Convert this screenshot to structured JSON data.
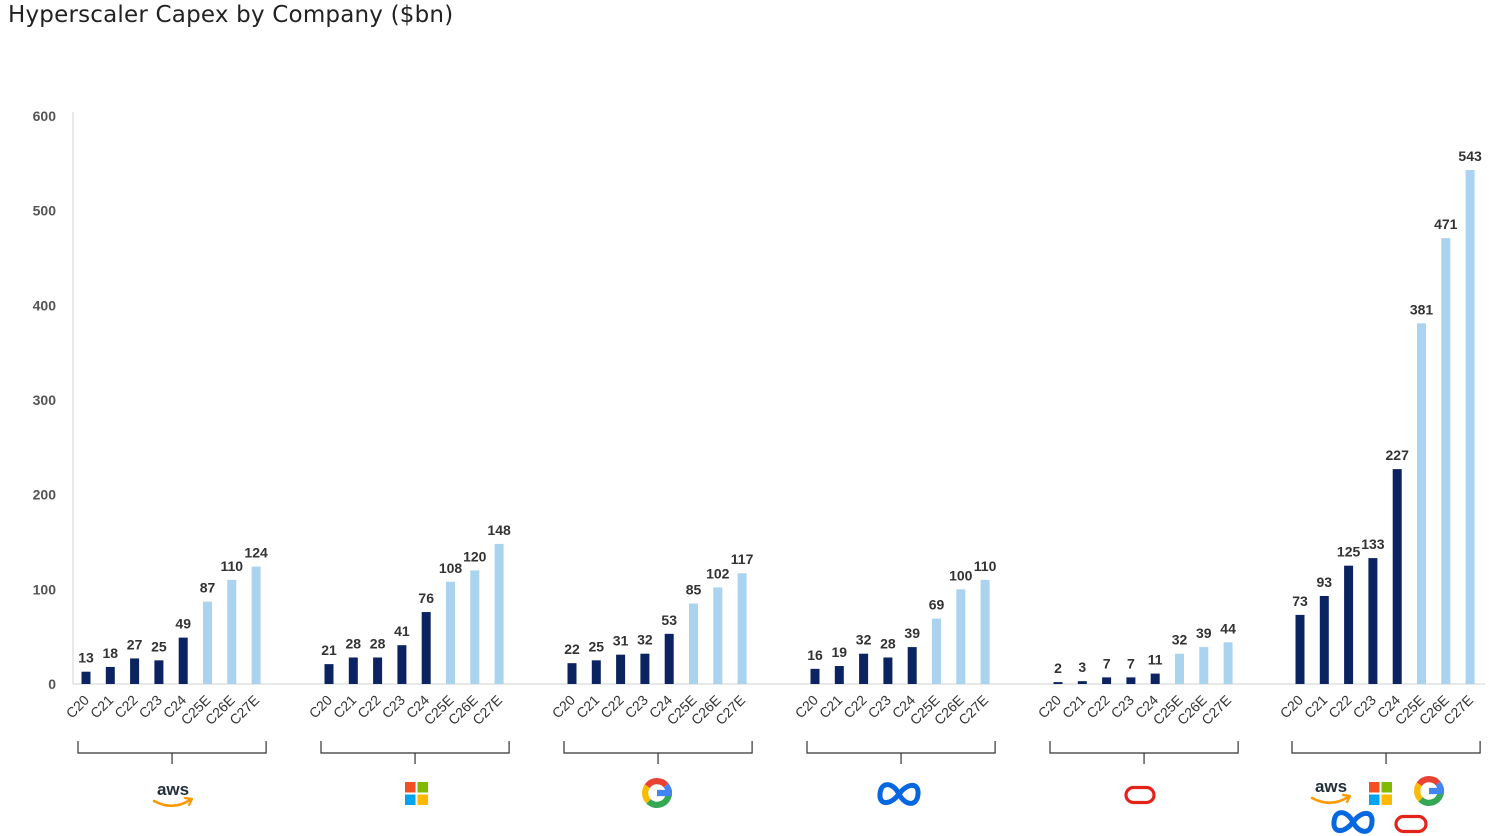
{
  "title": "Hyperscaler Capex by Company ($bn)",
  "chart_data": {
    "type": "bar",
    "title": "Hyperscaler Capex by Company ($bn)",
    "ylim": [
      0,
      600
    ],
    "yticks": [
      0,
      100,
      200,
      300,
      400,
      500,
      600
    ],
    "categories": [
      "C20",
      "C21",
      "C22",
      "C23",
      "C24",
      "C25E",
      "C26E",
      "C27E"
    ],
    "colors": {
      "actual": "#0b2461",
      "estimate": "#a9d3ef"
    },
    "estimate_from_index": 5,
    "grid": false,
    "groups": [
      {
        "logo": "aws",
        "values": [
          13,
          18,
          27,
          25,
          49,
          87,
          110,
          124
        ]
      },
      {
        "logo": "microsoft",
        "values": [
          21,
          28,
          28,
          41,
          76,
          108,
          120,
          148
        ]
      },
      {
        "logo": "google",
        "values": [
          22,
          25,
          31,
          32,
          53,
          85,
          102,
          117
        ]
      },
      {
        "logo": "meta",
        "values": [
          16,
          19,
          32,
          28,
          39,
          69,
          100,
          110
        ]
      },
      {
        "logo": "oracle",
        "values": [
          2,
          3,
          7,
          7,
          11,
          32,
          39,
          44
        ]
      },
      {
        "logo": "combined (aws, microsoft, google, meta, oracle)",
        "values": [
          73,
          93,
          125,
          133,
          227,
          381,
          471,
          543
        ]
      }
    ]
  },
  "logos": {
    "aws_text": "aws"
  }
}
